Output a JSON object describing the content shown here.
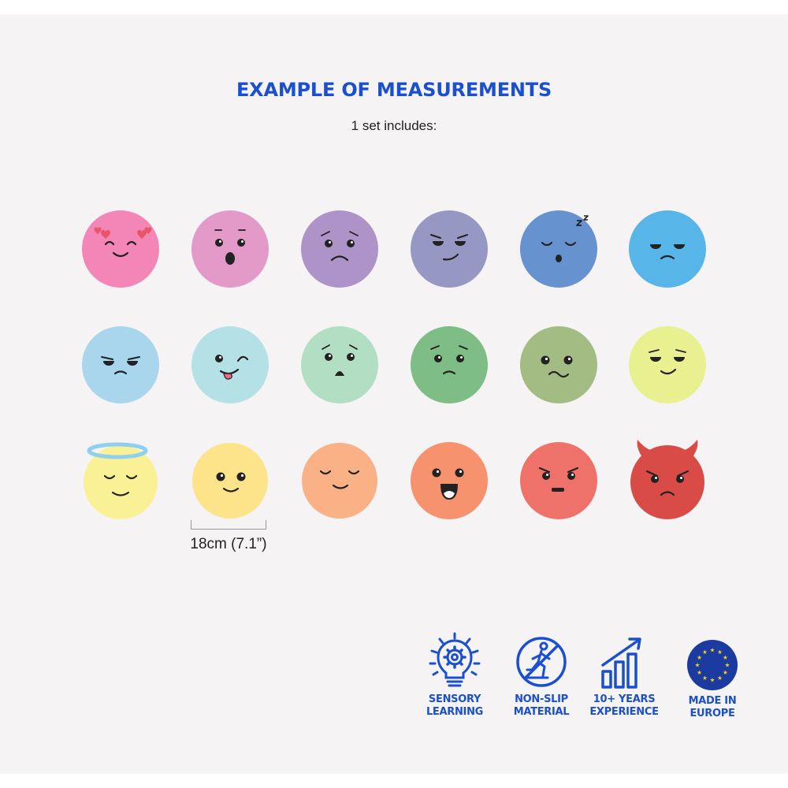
{
  "title": "EXAMPLE OF MEASUREMENTS",
  "subtitle": "1 set includes:",
  "measurement": "18cm (7.1”)",
  "colors": {
    "title": "#1a4fd0",
    "faces": [
      "#f386b6",
      "#e39ac8",
      "#ad93c7",
      "#9797c4",
      "#6692cf",
      "#58b5e8",
      "#a9d5ed",
      "#b3e1e5",
      "#b2dfc4",
      "#7ebd85",
      "#a2bc83",
      "#e9f08f",
      "#faf197",
      "#fde48a",
      "#f9b185",
      "#f6926e",
      "#ee726a",
      "#d94b47"
    ],
    "eu_flag": "#1c3ba0",
    "eu_stars": "#f7d117"
  },
  "badges": [
    {
      "icon": "lightbulb-gear-icon",
      "line1": "SENSORY",
      "line2": "LEARNING"
    },
    {
      "icon": "no-slip-icon",
      "line1": "NON-SLIP",
      "line2": "MATERIAL"
    },
    {
      "icon": "growth-chart-icon",
      "line1": "10+ YEARS",
      "line2": "EXPERIENCE"
    },
    {
      "icon": "eu-flag-icon",
      "line1": "MADE IN",
      "line2": "EUROPE"
    }
  ]
}
